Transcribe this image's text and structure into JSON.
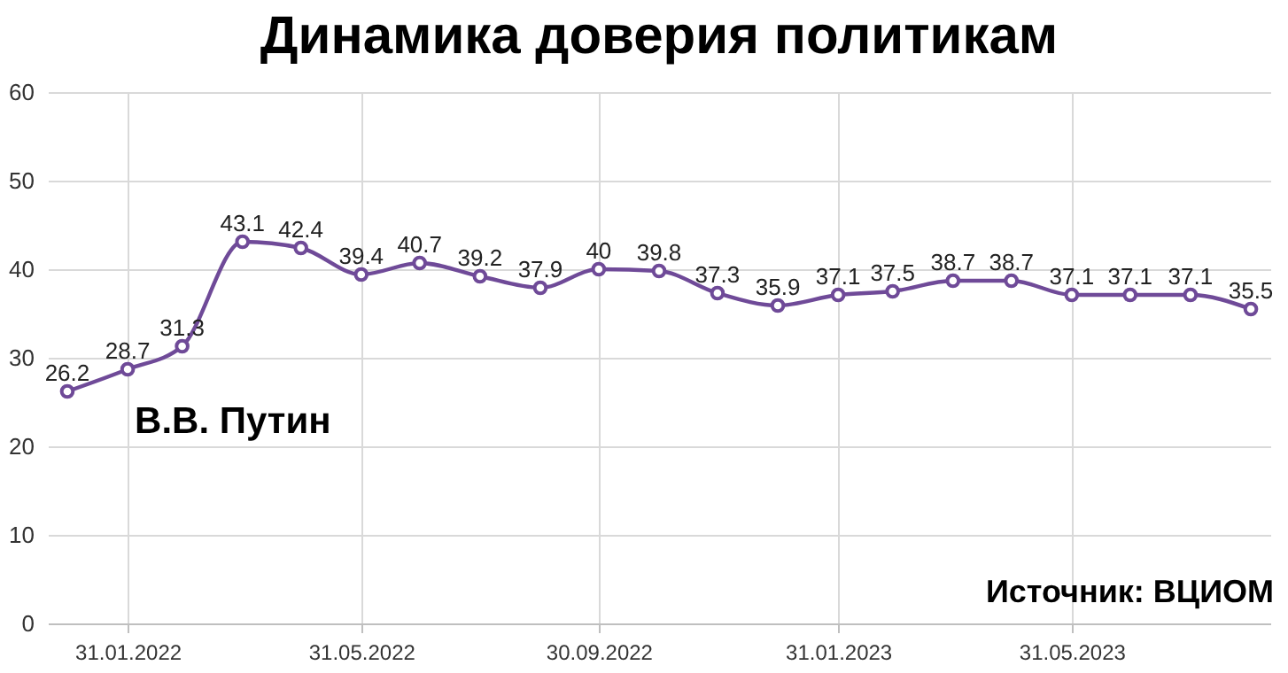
{
  "chart_data": {
    "type": "line",
    "title": "Динамика доверия политикам",
    "x": [
      "2021-12-31",
      "2022-01-31",
      "2022-02-28",
      "2022-03-31",
      "2022-04-30",
      "2022-05-31",
      "2022-06-30",
      "2022-07-31",
      "2022-08-31",
      "2022-09-30",
      "2022-10-31",
      "2022-11-30",
      "2022-12-31",
      "2023-01-31",
      "2023-02-28",
      "2023-03-31",
      "2023-04-30",
      "2023-05-31",
      "2023-06-30",
      "2023-07-31",
      "2023-08-31"
    ],
    "series": [
      {
        "name": "В.В. Путин",
        "color": "#6f4a98",
        "values": [
          26.2,
          28.7,
          31.3,
          43.1,
          42.4,
          39.4,
          40.7,
          39.2,
          37.9,
          40,
          39.8,
          37.3,
          35.9,
          37.1,
          37.5,
          38.7,
          38.7,
          37.1,
          37.1,
          37.1,
          35.5
        ]
      }
    ],
    "ylim": [
      0,
      60
    ],
    "yticks": [
      0,
      10,
      20,
      30,
      40,
      50,
      60
    ],
    "xlim": [
      "2021-12-21",
      "2023-09-10"
    ],
    "xticks": [
      {
        "value": "2022-01-31",
        "label": "31.01.2022"
      },
      {
        "value": "2022-05-31",
        "label": "31.05.2022"
      },
      {
        "value": "2022-09-30",
        "label": "30.09.2022"
      },
      {
        "value": "2023-01-31",
        "label": "31.01.2023"
      },
      {
        "value": "2023-05-31",
        "label": "31.05.2023"
      }
    ],
    "annotations": [
      "Источник: ВЦИОМ"
    ],
    "grid": true,
    "marker": "circle",
    "line_style": "solid",
    "data_labels": true,
    "legend": false
  }
}
